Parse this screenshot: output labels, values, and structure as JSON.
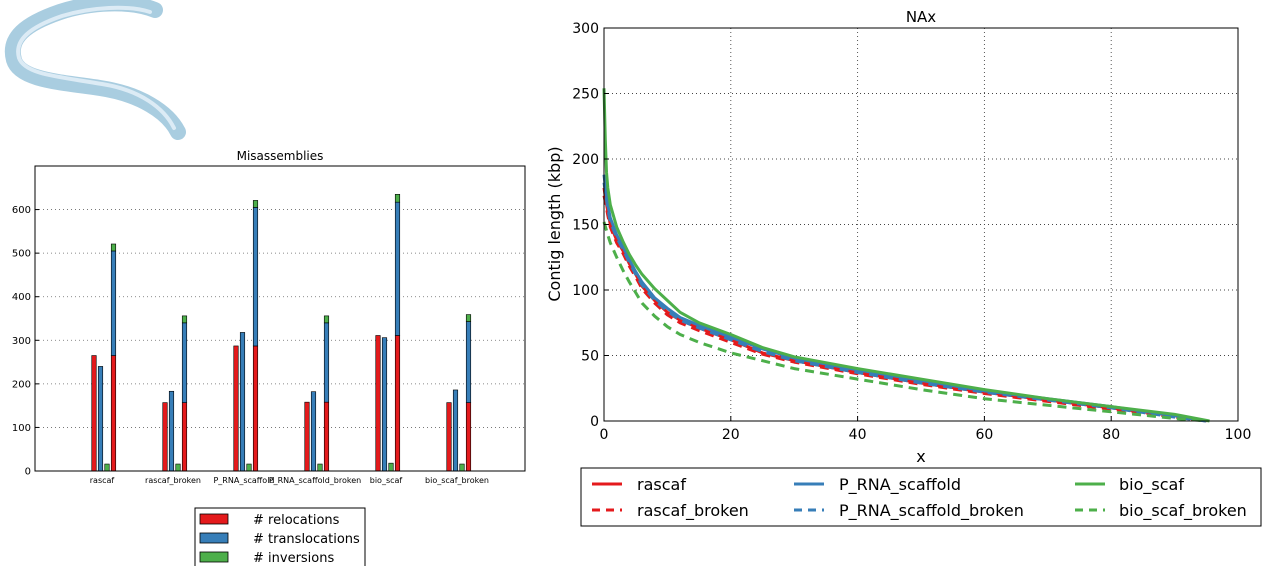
{
  "colors": {
    "red": "#e41a1c",
    "blue": "#377eb8",
    "green": "#4daf4a",
    "worm_fill": "#a9cde0",
    "worm_stroke": "#5a8fb3"
  },
  "image": {
    "icon": "nematode-worm-illustration"
  },
  "chart_data": [
    {
      "type": "bar",
      "title": "Misassemblies",
      "xlabel": "",
      "ylabel": "",
      "ylim": [
        0,
        700
      ],
      "yticks": [
        "0",
        "100",
        "200",
        "300",
        "400",
        "500",
        "600"
      ],
      "grid": true,
      "legend_position": "bottom",
      "categories": [
        "rascaf",
        "rascaf_broken",
        "P_RNA_scaffold",
        "P_RNA_scaffold_broken",
        "bio_scaf",
        "bio_scaf_broken"
      ],
      "series": [
        {
          "name": "# relocations",
          "values": [
            265,
            157,
            287,
            158,
            311,
            157
          ]
        },
        {
          "name": "# translocations",
          "values": [
            240,
            183,
            318,
            182,
            306,
            186
          ]
        },
        {
          "name": "# inversions",
          "values": [
            16,
            16,
            16,
            16,
            18,
            16
          ]
        }
      ],
      "stacked_total_bar": "relocations + translocations + inversions"
    },
    {
      "type": "line",
      "title": "NAx",
      "xlabel": "x",
      "ylabel": "Contig length  (kbp)",
      "xlim": [
        0,
        100
      ],
      "ylim": [
        0,
        300
      ],
      "xticks": [
        "0",
        "20",
        "40",
        "60",
        "80",
        "100"
      ],
      "yticks": [
        "0",
        "50",
        "100",
        "150",
        "200",
        "250",
        "300"
      ],
      "grid": true,
      "legend_position": "bottom",
      "series": [
        {
          "name": "rascaf",
          "style": "solid",
          "x": [
            0,
            0.3,
            0.6,
            1,
            2,
            3,
            4,
            5,
            6,
            8,
            10,
            12,
            15,
            20,
            25,
            30,
            40,
            50,
            60,
            70,
            80,
            90,
            95
          ],
          "y": [
            178,
            168,
            160,
            150,
            138,
            130,
            120,
            112,
            103,
            92,
            83,
            77,
            71,
            62,
            52,
            46,
            37,
            29,
            22,
            16,
            10,
            4,
            0
          ]
        },
        {
          "name": "rascaf_broken",
          "style": "dashed",
          "x": [
            0,
            0.3,
            0.6,
            1,
            2,
            3,
            4,
            5,
            6,
            8,
            10,
            12,
            15,
            20,
            25,
            30,
            40,
            50,
            60,
            70,
            80,
            90,
            95
          ],
          "y": [
            172,
            165,
            157,
            148,
            136,
            128,
            118,
            110,
            101,
            90,
            81,
            75,
            69,
            60,
            51,
            45,
            36,
            28,
            21,
            15,
            9,
            3,
            0
          ]
        },
        {
          "name": "P_RNA_scaffold",
          "style": "solid",
          "x": [
            0,
            0.3,
            0.6,
            1,
            2,
            3,
            4,
            5,
            6,
            8,
            10,
            12,
            15,
            20,
            25,
            30,
            40,
            50,
            60,
            70,
            80,
            90,
            95
          ],
          "y": [
            188,
            175,
            165,
            155,
            142,
            133,
            123,
            114,
            106,
            94,
            86,
            79,
            73,
            64,
            55,
            48,
            39,
            31,
            23,
            17,
            11,
            4,
            0
          ]
        },
        {
          "name": "P_RNA_scaffold_broken",
          "style": "dashed",
          "x": [
            0,
            0.3,
            0.6,
            1,
            2,
            3,
            4,
            5,
            6,
            8,
            10,
            12,
            15,
            20,
            25,
            30,
            40,
            50,
            60,
            70,
            80,
            90,
            95
          ],
          "y": [
            182,
            172,
            162,
            152,
            140,
            131,
            121,
            112,
            104,
            92,
            84,
            77,
            71,
            62,
            53,
            46,
            37,
            29,
            22,
            16,
            10,
            3,
            0
          ]
        },
        {
          "name": "bio_scaf",
          "style": "solid",
          "x": [
            0,
            0.2,
            0.4,
            0.6,
            1,
            2,
            3,
            4,
            5,
            6,
            8,
            10,
            12,
            15,
            20,
            25,
            30,
            40,
            50,
            60,
            70,
            80,
            90,
            95.5
          ],
          "y": [
            254,
            215,
            190,
            178,
            165,
            148,
            137,
            127,
            119,
            112,
            101,
            92,
            83,
            75,
            66,
            56,
            49,
            40,
            32,
            24,
            17,
            11,
            5,
            0
          ]
        },
        {
          "name": "bio_scaf_broken",
          "style": "dashed",
          "x": [
            0,
            0.3,
            0.6,
            1,
            2,
            3,
            4,
            5,
            6,
            8,
            10,
            12,
            15,
            20,
            25,
            30,
            40,
            50,
            60,
            70,
            80,
            90,
            95
          ],
          "y": [
            152,
            147,
            142,
            136,
            125,
            115,
            106,
            98,
            90,
            80,
            72,
            66,
            60,
            52,
            46,
            40,
            32,
            24,
            17,
            12,
            7,
            2,
            0
          ]
        }
      ]
    }
  ]
}
